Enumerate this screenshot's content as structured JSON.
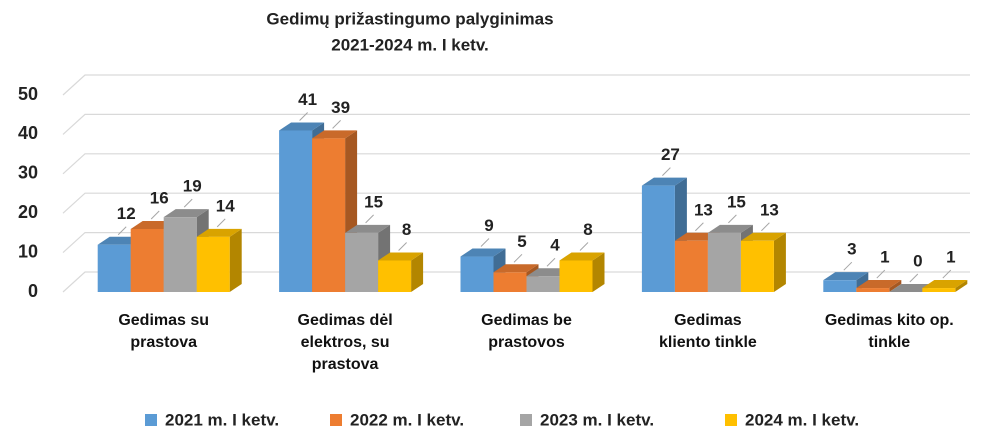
{
  "chart_data": {
    "type": "bar3d",
    "title": "Gedimų prižastingumo palyginimas",
    "subtitle": "2021-2024 m. I ketv.",
    "categories": [
      "Gedimas su prastova",
      "Gedimas dėl elektros, su prastova",
      "Gedimas be prastovos",
      "Gedimas kliento tinkle",
      "Gedimas kito op. tinkle"
    ],
    "series": [
      {
        "name": "2021 m. I ketv.",
        "color": "#5b9bd5",
        "values": [
          12,
          41,
          9,
          27,
          3
        ]
      },
      {
        "name": "2022 m. I ketv.",
        "color": "#ed7d31",
        "values": [
          16,
          39,
          5,
          13,
          1
        ]
      },
      {
        "name": "2023 m. I ketv.",
        "color": "#a5a5a5",
        "values": [
          19,
          15,
          4,
          15,
          0
        ]
      },
      {
        "name": "2024 m. I ketv.",
        "color": "#ffc000",
        "values": [
          14,
          8,
          8,
          13,
          1
        ]
      }
    ],
    "ylim": [
      0,
      50
    ],
    "yticks": [
      0,
      10,
      20,
      30,
      40,
      50
    ],
    "grid": true,
    "legend": "bottom"
  }
}
